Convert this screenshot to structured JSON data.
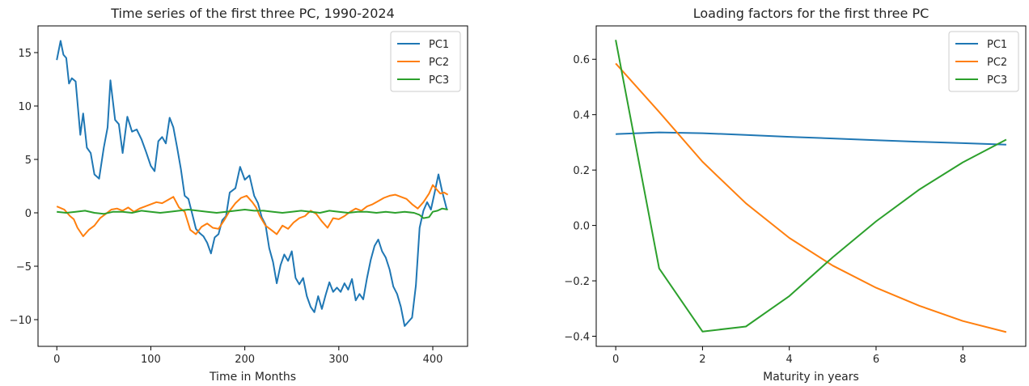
{
  "chart_data": [
    {
      "type": "line",
      "title": "Time series of the first three PC, 1990-2024",
      "xlabel": "Time in Months",
      "ylabel": "",
      "xlim": [
        -20,
        437
      ],
      "ylim": [
        -12.5,
        17.5
      ],
      "xticks": [
        0,
        100,
        200,
        300,
        400
      ],
      "yticks": [
        -10,
        -5,
        0,
        5,
        10,
        15
      ],
      "legend": "top-right",
      "series": [
        {
          "name": "PC1",
          "color": "#1f77b4",
          "x": [
            0,
            4,
            7,
            10,
            13,
            16,
            20,
            25,
            28,
            32,
            36,
            40,
            45,
            50,
            54,
            57,
            62,
            66,
            70,
            75,
            80,
            85,
            90,
            95,
            100,
            104,
            108,
            112,
            116,
            120,
            124,
            128,
            132,
            136,
            140,
            144,
            148,
            152,
            156,
            160,
            164,
            168,
            172,
            176,
            180,
            184,
            190,
            195,
            200,
            205,
            210,
            214,
            218,
            222,
            226,
            230,
            234,
            238,
            242,
            246,
            250,
            254,
            258,
            262,
            266,
            270,
            274,
            278,
            282,
            286,
            290,
            294,
            298,
            302,
            306,
            310,
            314,
            318,
            322,
            326,
            330,
            334,
            338,
            342,
            346,
            350,
            354,
            358,
            362,
            366,
            370,
            374,
            378,
            382,
            386,
            390,
            394,
            398,
            402,
            406,
            410,
            415
          ],
          "values": [
            14.3,
            16.1,
            14.8,
            14.5,
            12.1,
            12.6,
            12.3,
            7.3,
            9.3,
            6.1,
            5.6,
            3.6,
            3.2,
            6.1,
            8.0,
            12.4,
            8.7,
            8.3,
            5.6,
            9.0,
            7.6,
            7.8,
            6.9,
            5.7,
            4.4,
            3.9,
            6.7,
            7.1,
            6.5,
            8.9,
            8.0,
            6.1,
            4.1,
            1.6,
            1.3,
            -0.1,
            -1.5,
            -1.9,
            -2.2,
            -2.8,
            -3.8,
            -2.3,
            -2.0,
            -0.7,
            -0.3,
            1.9,
            2.3,
            4.3,
            3.1,
            3.5,
            1.6,
            0.9,
            -0.4,
            -1.1,
            -3.3,
            -4.6,
            -6.6,
            -4.9,
            -3.9,
            -4.5,
            -3.6,
            -6.1,
            -6.7,
            -6.1,
            -7.8,
            -8.8,
            -9.3,
            -7.8,
            -9.0,
            -7.7,
            -6.5,
            -7.4,
            -7.0,
            -7.4,
            -6.6,
            -7.2,
            -6.2,
            -8.2,
            -7.6,
            -8.1,
            -6.1,
            -4.4,
            -3.1,
            -2.5,
            -3.6,
            -4.2,
            -5.3,
            -6.9,
            -7.6,
            -8.8,
            -10.6,
            -10.2,
            -9.8,
            -6.8,
            -1.4,
            0.2,
            1.0,
            0.3,
            1.9,
            3.6,
            2.0,
            0.3
          ]
        },
        {
          "name": "PC2",
          "color": "#ff7f0e",
          "x": [
            0,
            8,
            14,
            18,
            22,
            28,
            34,
            40,
            46,
            52,
            58,
            64,
            70,
            76,
            82,
            88,
            94,
            100,
            106,
            112,
            118,
            124,
            130,
            136,
            142,
            148,
            154,
            160,
            166,
            172,
            178,
            184,
            190,
            196,
            202,
            208,
            212,
            216,
            222,
            228,
            234,
            240,
            246,
            252,
            258,
            264,
            270,
            276,
            282,
            288,
            294,
            300,
            306,
            312,
            318,
            324,
            330,
            336,
            342,
            348,
            354,
            360,
            366,
            372,
            378,
            384,
            390,
            396,
            400,
            404,
            408,
            412,
            416
          ],
          "values": [
            0.6,
            0.3,
            -0.3,
            -0.6,
            -1.4,
            -2.2,
            -1.6,
            -1.2,
            -0.5,
            -0.1,
            0.3,
            0.4,
            0.2,
            0.5,
            0.1,
            0.4,
            0.6,
            0.8,
            1.0,
            0.9,
            1.2,
            1.5,
            0.5,
            0.1,
            -1.6,
            -2.0,
            -1.3,
            -1.0,
            -1.4,
            -1.5,
            -0.7,
            0.2,
            0.9,
            1.4,
            1.6,
            1.0,
            0.5,
            -0.3,
            -1.2,
            -1.6,
            -2.0,
            -1.2,
            -1.5,
            -0.9,
            -0.5,
            -0.3,
            0.2,
            -0.1,
            -0.8,
            -1.4,
            -0.5,
            -0.6,
            -0.3,
            0.1,
            0.4,
            0.2,
            0.6,
            0.8,
            1.1,
            1.4,
            1.6,
            1.7,
            1.5,
            1.3,
            0.8,
            0.4,
            1.0,
            1.8,
            2.6,
            2.2,
            1.8,
            1.9,
            1.7
          ]
        },
        {
          "name": "PC3",
          "color": "#2ca02c",
          "x": [
            0,
            10,
            20,
            30,
            40,
            50,
            60,
            70,
            80,
            90,
            100,
            110,
            120,
            130,
            140,
            150,
            160,
            170,
            180,
            190,
            200,
            210,
            220,
            230,
            240,
            250,
            260,
            270,
            280,
            290,
            300,
            310,
            320,
            330,
            340,
            350,
            360,
            370,
            380,
            386,
            390,
            396,
            400,
            405,
            410,
            416
          ],
          "values": [
            0.1,
            0.0,
            0.1,
            0.2,
            0.0,
            -0.1,
            0.1,
            0.1,
            0.0,
            0.2,
            0.1,
            0.0,
            0.1,
            0.2,
            0.3,
            0.2,
            0.1,
            0.0,
            0.1,
            0.2,
            0.3,
            0.2,
            0.2,
            0.1,
            0.0,
            0.1,
            0.2,
            0.1,
            0.0,
            0.2,
            0.1,
            0.0,
            0.1,
            0.1,
            0.0,
            0.1,
            0.0,
            0.1,
            0.0,
            -0.2,
            -0.5,
            -0.4,
            0.1,
            0.2,
            0.4,
            0.3
          ]
        }
      ]
    },
    {
      "type": "line",
      "title": "Loading factors for the first three PC",
      "xlabel": "Maturity in years",
      "ylabel": "",
      "xlim": [
        -0.45,
        9.45
      ],
      "ylim": [
        -0.4365,
        0.7205
      ],
      "xticks": [
        0,
        2,
        4,
        6,
        8
      ],
      "yticks": [
        -0.4,
        -0.2,
        0.0,
        0.2,
        0.4,
        0.6
      ],
      "legend": "top-right",
      "categories": [
        0,
        1,
        2,
        3,
        4,
        5,
        6,
        7,
        8,
        9
      ],
      "series": [
        {
          "name": "PC1",
          "color": "#1f77b4",
          "values": [
            0.33,
            0.336,
            0.333,
            0.327,
            0.32,
            0.314,
            0.308,
            0.302,
            0.297,
            0.292
          ]
        },
        {
          "name": "PC2",
          "color": "#ff7f0e",
          "values": [
            0.585,
            0.41,
            0.23,
            0.08,
            -0.045,
            -0.145,
            -0.225,
            -0.29,
            -0.345,
            -0.385
          ]
        },
        {
          "name": "PC3",
          "color": "#2ca02c",
          "values": [
            0.67,
            -0.155,
            -0.383,
            -0.365,
            -0.255,
            -0.115,
            0.015,
            0.13,
            0.228,
            0.31
          ]
        }
      ]
    }
  ]
}
